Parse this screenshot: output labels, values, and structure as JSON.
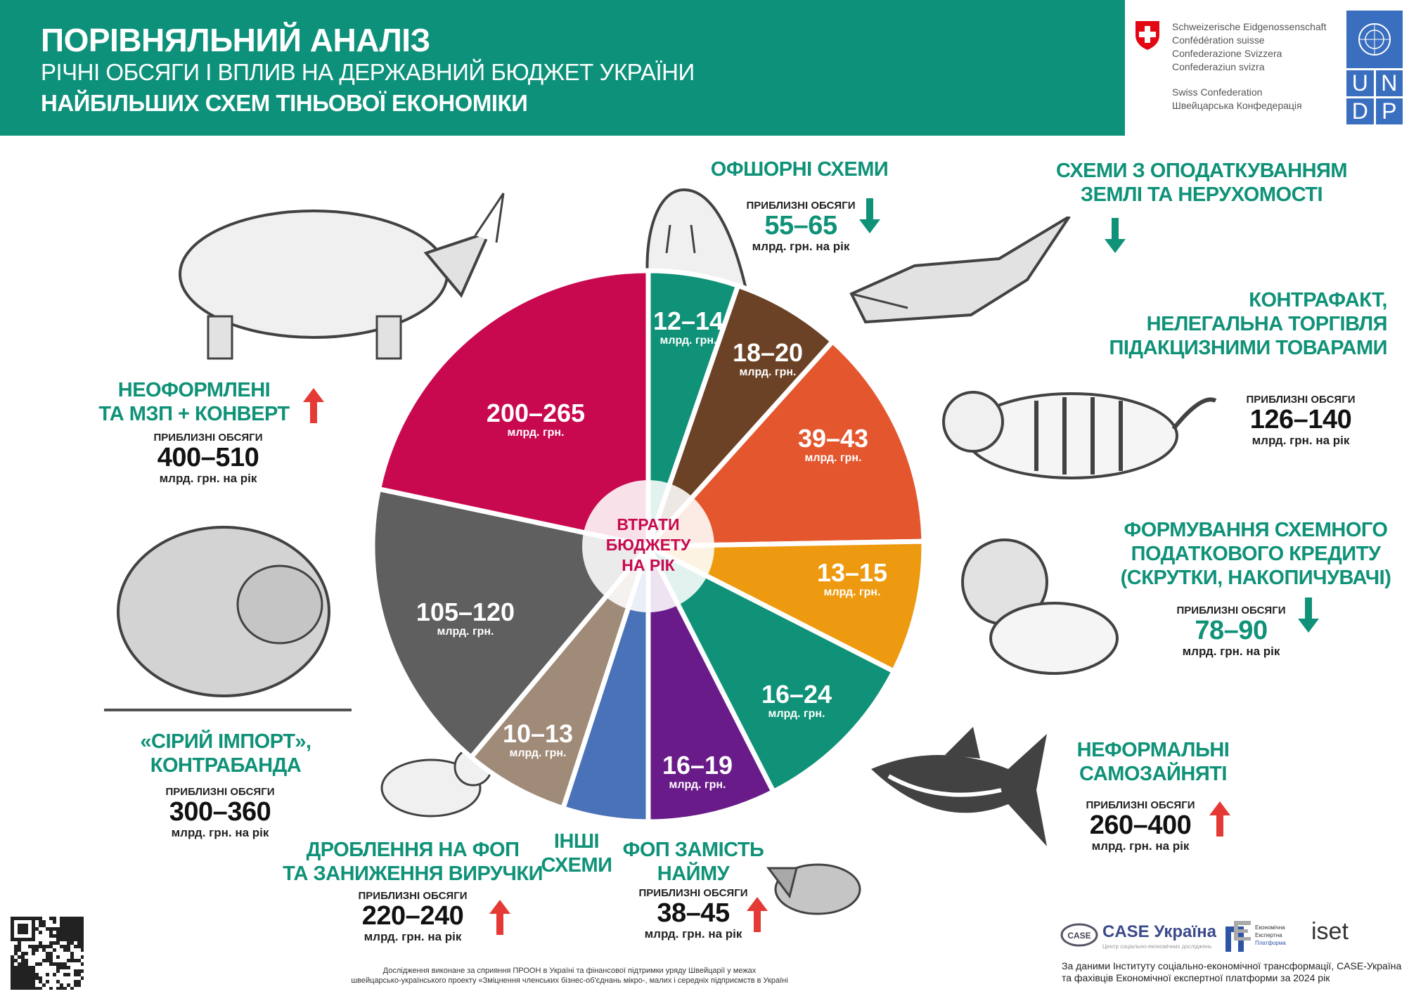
{
  "header": {
    "title": "ПОРІВНЯЛЬНИЙ АНАЛІЗ",
    "subtitle1": "РІЧНІ ОБСЯГИ І ВПЛИВ НА ДЕРЖАВНИЙ БЮДЖЕТ УКРАЇНИ",
    "subtitle2": "НАЙБІЛЬШИХ СХЕМ ТІНЬОВОЇ ЕКОНОМІКИ"
  },
  "partners": {
    "swiss_lines": [
      "Schweizerische Eidgenossenschaft",
      "Confédération suisse",
      "Confederazione Svizzera",
      "Confederaziun svizra"
    ],
    "swiss_lines2": [
      "Swiss Confederation",
      "Швейцарська Конфедерація"
    ],
    "undp": [
      "U",
      "N",
      "D",
      "P"
    ]
  },
  "colors": {
    "brand": "#0e917a",
    "up": "#e53935",
    "down": "#0f9278",
    "center": "#c8094f"
  },
  "schemes": {
    "informal": {
      "title": [
        "НЕОФОРМЛЕНІ",
        "ТА МЗП + КОНВЕРТ"
      ],
      "label": "ПРИБЛИЗНІ ОБСЯГИ",
      "value": "400–510",
      "unit": "млрд. грн. на рік",
      "trend": "up",
      "animal": "rhino"
    },
    "gray_import": {
      "title": [
        "«СІРИЙ ІМПОРТ»,",
        "КОНТРАБАНДА"
      ],
      "label": "ПРИБЛИЗНІ ОБСЯГИ",
      "value": "300–360",
      "unit": "млрд. грн. на рік",
      "animal": "bear"
    },
    "splitting": {
      "title": [
        "ДРОБЛЕННЯ НА ФОП",
        "ТА ЗАНИЖЕННЯ ВИРУЧКИ"
      ],
      "label": "ПРИБЛИЗНІ ОБСЯГИ",
      "value": "220–240",
      "unit": "млрд. грн. на рік",
      "trend": "up",
      "animal": "lynx"
    },
    "other": {
      "title": [
        "ІНШІ",
        "СХЕМИ"
      ]
    },
    "fop_hire": {
      "title": [
        "ФОП ЗАМІСТЬ",
        "НАЙМУ"
      ],
      "label": "ПРИБЛИЗНІ ОБСЯГИ",
      "value": "38–45",
      "unit": "млрд. грн. на рік",
      "trend": "up",
      "animal": "wolf"
    },
    "offshore": {
      "title": [
        "ОФШОРНІ СХЕМИ"
      ],
      "label": "ПРИБЛИЗНІ ОБСЯГИ",
      "value": "55–65",
      "unit": "млрд. грн. на рік",
      "trend": "down",
      "animal": "walrus"
    },
    "land": {
      "title": [
        "СХЕМИ З ОПОДАТКУВАННЯМ",
        "ЗЕМЛІ ТА НЕРУХОМОСТІ"
      ],
      "trend": "down",
      "animal": "crocodile"
    },
    "counterfeit": {
      "title": [
        "КОНТРАФАКТ,",
        "НЕЛЕГАЛЬНА ТОРГІВЛЯ",
        "ПІДАКЦИЗНИМИ ТОВАРАМИ"
      ],
      "label": "ПРИБЛИЗНІ ОБСЯГИ",
      "value": "126–140",
      "unit": "млрд. грн. на рік",
      "animal": "tiger"
    },
    "tax_credit": {
      "title": [
        "ФОРМУВАННЯ СХЕМНОГО",
        "ПОДАТКОВОГО КРЕДИТУ",
        "(СКРУТКИ, НАКОПИЧУВАЧІ)"
      ],
      "label": "ПРИБЛИЗНІ ОБСЯГИ",
      "value": "78–90",
      "unit": "млрд. грн. на рік",
      "trend": "down",
      "animal": "lion"
    },
    "self_employed": {
      "title": [
        "НЕФОРМАЛЬНІ",
        "САМОЗАЙНЯТІ"
      ],
      "label": "ПРИБЛИЗНІ ОБСЯГИ",
      "value": "260–400",
      "unit": "млрд. грн. на рік",
      "trend": "up",
      "animal": "shark"
    }
  },
  "chart_data": {
    "type": "pie",
    "center_label": [
      "ВТРАТИ",
      "БЮДЖЕТУ",
      "НА РІК"
    ],
    "unit": "млрд. грн.",
    "slices": [
      {
        "label": "12–14",
        "color": "#0f9278",
        "scheme": "offshore"
      },
      {
        "label": "18–20",
        "color": "#6b4226",
        "scheme": "land"
      },
      {
        "label": "39–43",
        "color": "#e4572e",
        "scheme": "counterfeit"
      },
      {
        "label": "13–15",
        "color": "#ee9a10",
        "scheme": "tax_credit"
      },
      {
        "label": "16–24",
        "color": "#0f9278",
        "scheme": "self_employed"
      },
      {
        "label": "16–19",
        "color": "#6a1b8a",
        "scheme": "fop_hire"
      },
      {
        "label": "",
        "color": "#4a72b8",
        "scheme": "other"
      },
      {
        "label": "10–13",
        "color": "#a08a78",
        "scheme": "splitting"
      },
      {
        "label": "105–120",
        "color": "#5f5f5f",
        "scheme": "gray_import"
      },
      {
        "label": "200–265",
        "color": "#c8094f",
        "scheme": "informal"
      }
    ]
  },
  "footer": {
    "note": [
      "Дослідження виконане за сприяння ПРООН в Україні та фінансової підтримки уряду Швейцарії у межах",
      "швейцарсько-українського проекту «Зміцнення членських бізнес-об'єднань мікро-, малих і середніх підприємств в Україні"
    ],
    "logos": {
      "case": "CASE Україна",
      "case_sub": "Центр соціально-економічних досліджень",
      "eep": [
        "Економічна",
        "Експертна",
        "Платформа"
      ],
      "iset": "iset"
    },
    "source": [
      "За даними Інституту соціально-економічної трансформації, CASE-Україна",
      "та фахівців Економічної експертної платформи за 2024 рік"
    ]
  }
}
